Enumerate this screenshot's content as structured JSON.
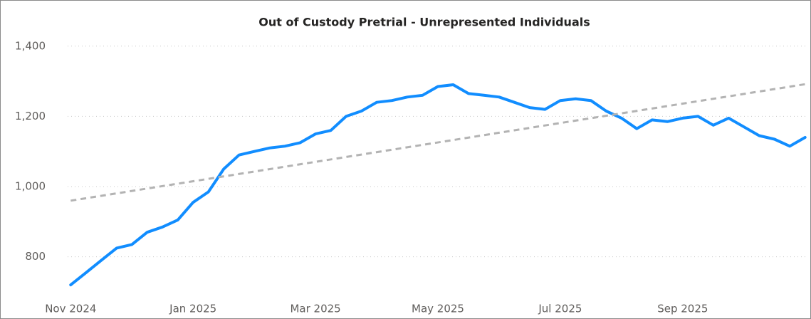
{
  "chart_data": {
    "type": "line",
    "title": "Out of Custody Pretrial - Unrepresented Individuals",
    "series": [
      {
        "color": "#118dff",
        "dashed": false,
        "x": [
          0,
          0.25,
          0.5,
          0.75,
          1,
          1.25,
          1.5,
          1.75,
          2,
          2.25,
          2.5,
          2.75,
          3,
          3.25,
          3.5,
          3.75,
          4,
          4.25,
          4.5,
          4.75,
          5,
          5.25,
          5.5,
          5.75,
          6,
          6.25,
          6.5,
          6.75,
          7,
          7.25,
          7.5,
          7.75,
          8,
          8.25,
          8.5,
          8.75,
          9,
          9.25,
          9.5,
          9.75,
          10,
          10.25,
          10.5,
          10.75,
          11,
          11.25,
          11.5,
          11.75,
          12
        ],
        "values": [
          720,
          755,
          790,
          825,
          835,
          870,
          885,
          905,
          955,
          985,
          1050,
          1090,
          1100,
          1110,
          1115,
          1125,
          1150,
          1160,
          1200,
          1215,
          1240,
          1245,
          1255,
          1260,
          1285,
          1290,
          1265,
          1260,
          1255,
          1240,
          1225,
          1220,
          1245,
          1250,
          1245,
          1215,
          1195,
          1165,
          1190,
          1185,
          1195,
          1200,
          1175,
          1195,
          1170,
          1145,
          1135,
          1115,
          1140
        ]
      },
      {
        "color": "#b3b3b3",
        "dashed": true,
        "x": [
          0,
          12.05
        ],
        "values": [
          960,
          1293
        ]
      }
    ],
    "xlim": [
      -0.05,
      12.05
    ],
    "xticks": [
      {
        "value": 0,
        "label": "Nov 2024"
      },
      {
        "value": 2,
        "label": "Jan 2025"
      },
      {
        "value": 4,
        "label": "Mar 2025"
      },
      {
        "value": 6,
        "label": "May 2025"
      },
      {
        "value": 8,
        "label": "Jul 2025"
      },
      {
        "value": 10,
        "label": "Sep 2025"
      }
    ],
    "ylim": [
      700,
      1430
    ],
    "yticks": [
      800,
      {
        "value": 1000,
        "label": "1,000"
      },
      {
        "value": 1200,
        "label": "1,200"
      },
      {
        "value": 1400,
        "label": "1,400"
      }
    ],
    "grid": true
  }
}
